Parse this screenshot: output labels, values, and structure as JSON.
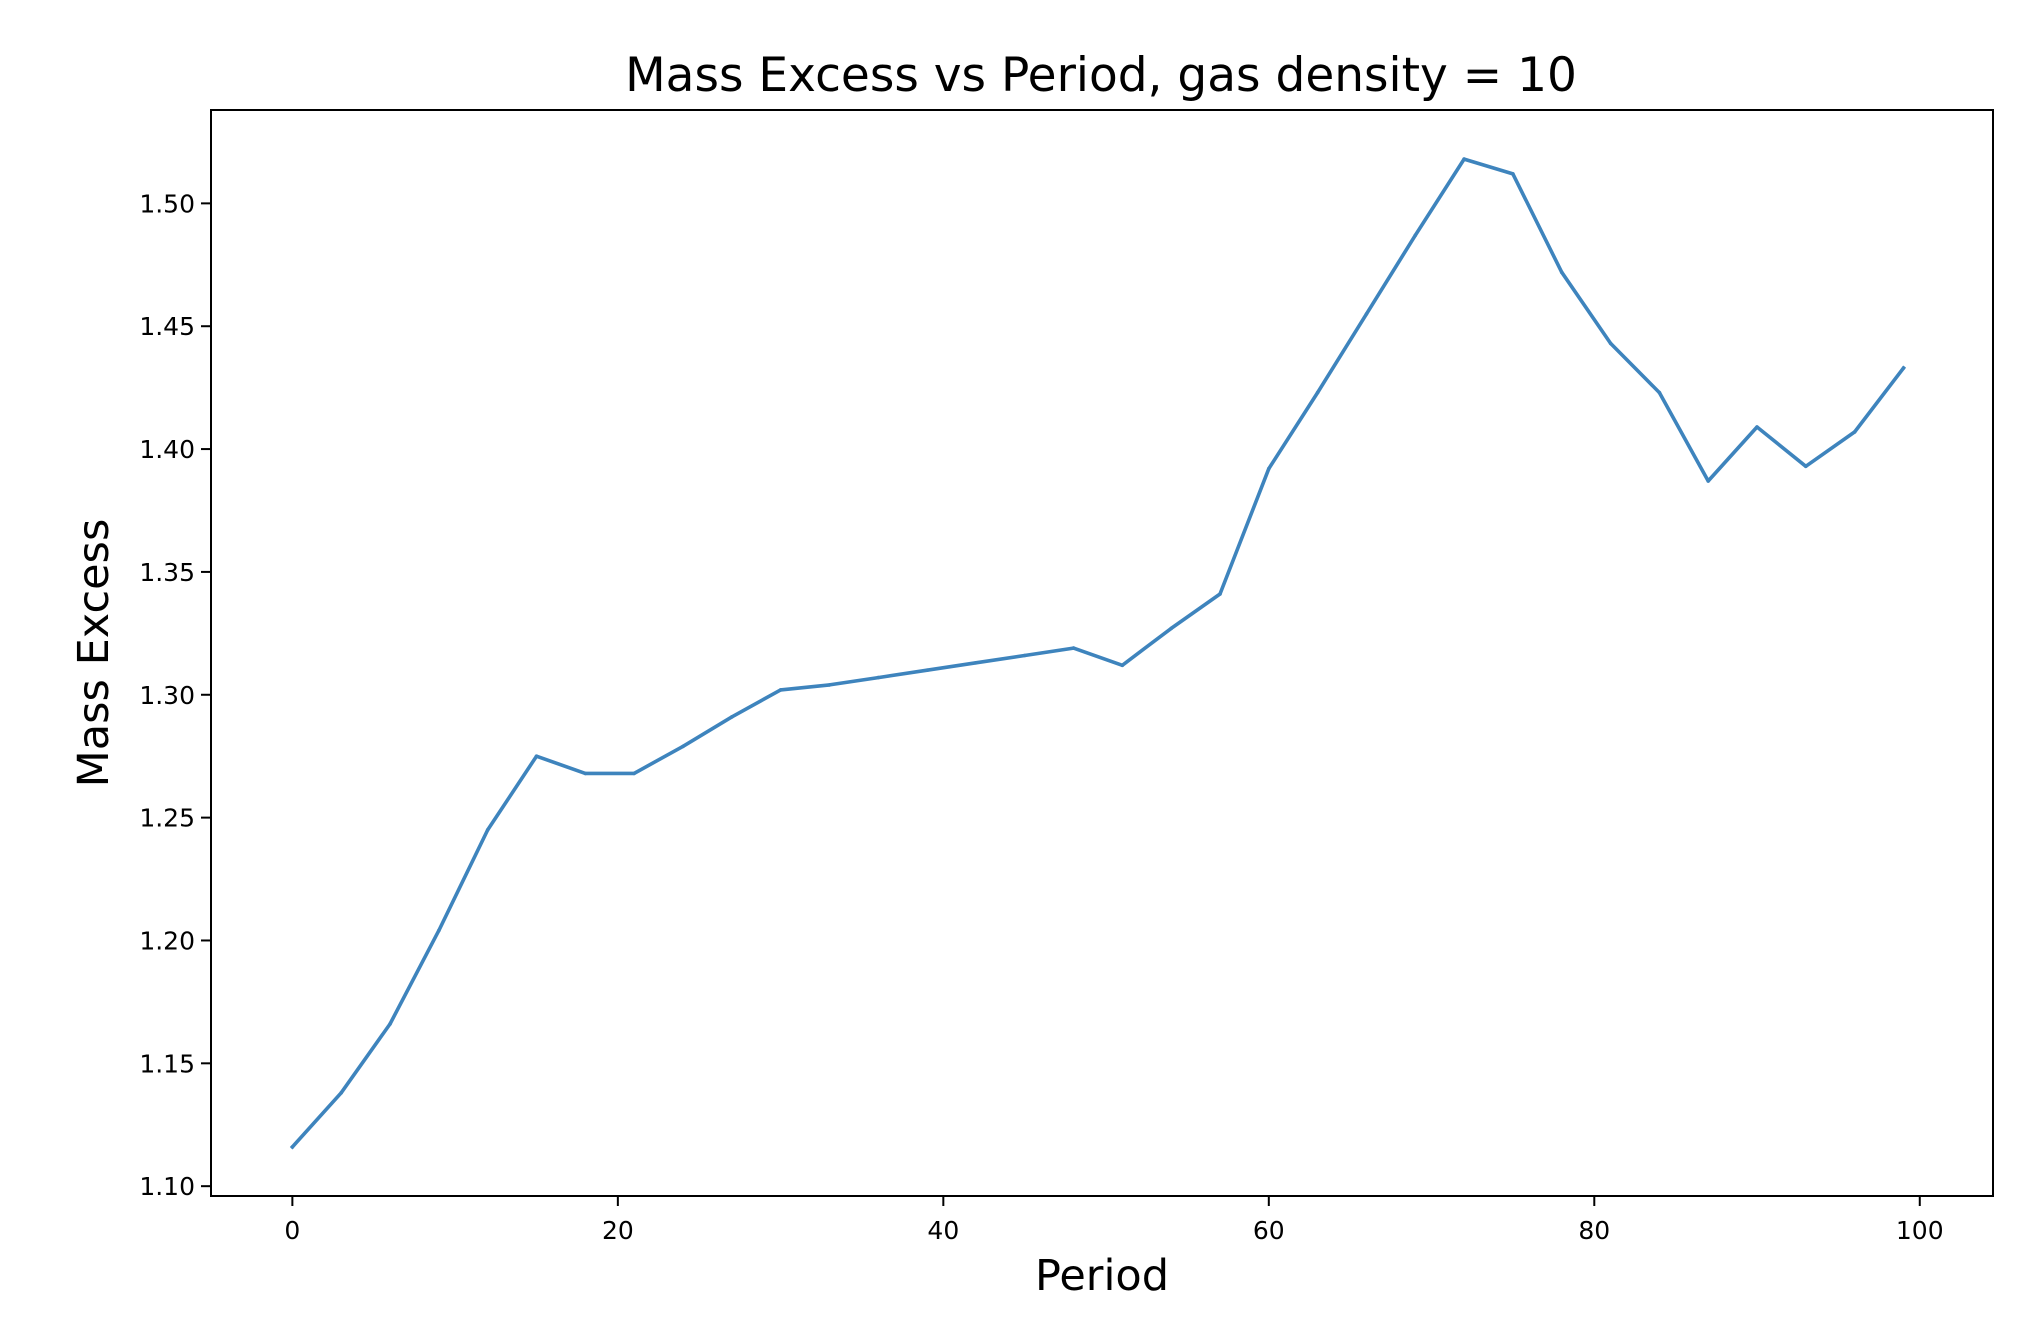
{
  "chart_data": {
    "type": "line",
    "title": "Mass Excess vs Period, gas density = 10",
    "xlabel": "Period",
    "ylabel": "Mass Excess",
    "xlim": [
      -5,
      104.5
    ],
    "ylim": [
      1.096,
      1.538
    ],
    "xticks": [
      0,
      20,
      40,
      60,
      80,
      100
    ],
    "xtick_labels": [
      "0",
      "20",
      "40",
      "60",
      "80",
      "100"
    ],
    "yticks": [
      1.1,
      1.15,
      1.2,
      1.25,
      1.3,
      1.35,
      1.4,
      1.45,
      1.5
    ],
    "ytick_labels": [
      "1.10",
      "1.15",
      "1.20",
      "1.25",
      "1.30",
      "1.35",
      "1.40",
      "1.45",
      "1.50"
    ],
    "grid": false,
    "line_color": "#3e84bd",
    "series": [
      {
        "x": [
          0,
          3,
          6,
          9,
          12,
          15,
          18,
          21,
          24,
          27,
          30,
          33,
          36,
          39,
          42,
          45,
          48,
          51,
          54,
          57,
          60,
          63,
          66,
          69,
          72,
          75,
          78,
          81,
          84,
          87,
          90,
          93,
          96,
          99
        ],
        "values": [
          1.116,
          1.138,
          1.166,
          1.204,
          1.245,
          1.275,
          1.268,
          1.268,
          1.279,
          1.291,
          1.302,
          1.304,
          1.307,
          1.31,
          1.313,
          1.316,
          1.319,
          1.312,
          1.327,
          1.341,
          1.392,
          1.423,
          1.455,
          1.487,
          1.518,
          1.512,
          1.472,
          1.443,
          1.423,
          1.387,
          1.409,
          1.393,
          1.407,
          1.433
        ]
      }
    ]
  }
}
